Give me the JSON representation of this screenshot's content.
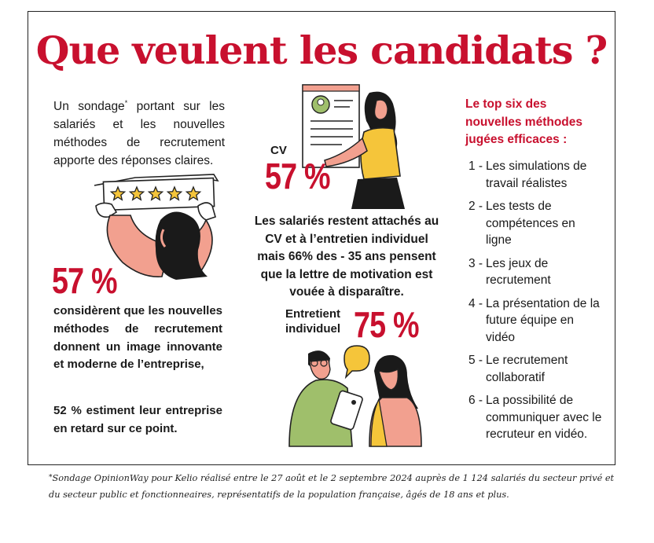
{
  "title": "Que veulent les candidats ?",
  "intro": {
    "text_before": "Un sondage",
    "asterisk": "*",
    "text_after": " portant sur les salariés et les nouvelles méthodes de recrutement apporte des réponses claires."
  },
  "left_stat": {
    "percent": "57 %",
    "text": "considèrent que les nouvelles méthodes de recrutement donnent un image innovante et moderne de l’entreprise,",
    "text2": "52 % estiment leur entreprise en retard sur ce point."
  },
  "cv_stat": {
    "label": "CV",
    "percent": "57 %"
  },
  "center_text": "Les salariés restent attachés au CV et à l’entretien individuel mais 66% des - 35 ans pensent que la lettre de motivation est vouée à disparaître.",
  "interview_stat": {
    "label": "Entretient individuel",
    "percent": "75 %"
  },
  "top_six": {
    "heading": "Le top six des nouvelles méthodes jugées efficaces :",
    "items": [
      {
        "num": "1 -",
        "label": "Les simulations de travail réalistes"
      },
      {
        "num": "2 -",
        "label": "Les tests de compétences en ligne"
      },
      {
        "num": "3 -",
        "label": "Les jeux de recrutement"
      },
      {
        "num": "4 -",
        "label": "La présentation de la future équipe en vidéo"
      },
      {
        "num": "5 -",
        "label": "Le recrutement collaboratif"
      },
      {
        "num": "6 -",
        "label": "La possibilité de communiquer avec le recruteur en vidéo."
      }
    ]
  },
  "footnote": {
    "asterisk": "*",
    "text": "Sondage OpinionWay pour Kelio réalisé entre le 27 août et le 2 septembre 2024 auprès de 1 124 salariés du secteur privé et du secteur public et fonctionneaires, représentatifs de la population française, âgés de 18 ans et plus."
  },
  "rating_stars": 5,
  "colors": {
    "accent_red": "#c8102e",
    "skin_pink": "#f2a08f",
    "yellow": "#f5c53a",
    "green": "#9fbf6b",
    "text": "#1a1a1a"
  }
}
